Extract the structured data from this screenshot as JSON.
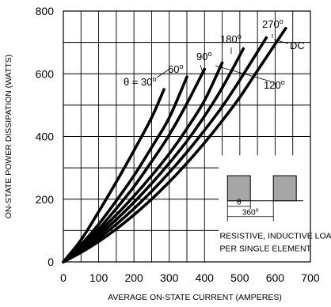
{
  "chart_data": {
    "type": "line",
    "xlabel": "AVERAGE ON-STATE  CURRENT (AMPERES)",
    "ylabel": "ON-STATE POWER DISSIPATION (WATTS)",
    "xlim": [
      0,
      700
    ],
    "ylim": [
      0,
      800
    ],
    "x_ticks": [
      "0",
      "100",
      "200",
      "300",
      "400",
      "500",
      "600",
      "700"
    ],
    "y_ticks": [
      "0",
      "200",
      "400",
      "600",
      "800"
    ],
    "grid": true,
    "series": [
      {
        "name": "θ = 30º",
        "end_label": "θ = 30",
        "end_label_sup": "o",
        "x": [
          0,
          50,
          100,
          150,
          200,
          250,
          285
        ],
        "y": [
          0,
          70,
          160,
          255,
          355,
          460,
          550
        ]
      },
      {
        "name": "60º",
        "end_label": "60",
        "end_label_sup": "o",
        "x": [
          0,
          50,
          100,
          150,
          200,
          250,
          300,
          350
        ],
        "y": [
          0,
          55,
          120,
          195,
          275,
          365,
          460,
          590
        ]
      },
      {
        "name": "90º",
        "end_label": "90",
        "end_label_sup": "o",
        "x": [
          0,
          50,
          100,
          150,
          200,
          250,
          300,
          350,
          400
        ],
        "y": [
          0,
          50,
          105,
          170,
          240,
          320,
          405,
          505,
          615
        ]
      },
      {
        "name": "180º",
        "end_label": "180",
        "end_label_sup": "o",
        "x": [
          0,
          50,
          100,
          150,
          200,
          250,
          300,
          350,
          400,
          450
        ],
        "y": [
          0,
          45,
          95,
          150,
          210,
          275,
          345,
          425,
          515,
          635
        ]
      },
      {
        "name": "120º",
        "end_label": "120",
        "end_label_sup": "o",
        "x": [
          0,
          50,
          100,
          150,
          200,
          250,
          300,
          350,
          400,
          450,
          510
        ],
        "y": [
          0,
          40,
          85,
          135,
          190,
          250,
          315,
          385,
          465,
          555,
          680
        ]
      },
      {
        "name": "270º",
        "end_label": "270",
        "end_label_sup": "o",
        "x": [
          0,
          50,
          100,
          150,
          200,
          250,
          300,
          350,
          400,
          450,
          500,
          575
        ],
        "y": [
          0,
          35,
          75,
          120,
          170,
          225,
          285,
          350,
          420,
          495,
          580,
          715
        ]
      },
      {
        "name": "DC",
        "end_label": "DC",
        "end_label_sup": "",
        "x": [
          0,
          50,
          100,
          150,
          200,
          250,
          300,
          350,
          400,
          450,
          500,
          550,
          630
        ],
        "y": [
          0,
          30,
          65,
          105,
          150,
          200,
          255,
          315,
          380,
          450,
          525,
          610,
          745
        ]
      }
    ],
    "inset": {
      "theta_label": "θ",
      "period_label": "360",
      "period_sup": "o",
      "note_lines": [
        "RESISTIVE, INDUCTIVE LOAD",
        "PER SINGLE ELEMENT"
      ]
    },
    "colors": {
      "line": "#000000",
      "grid": "#000000",
      "pulse_fill": "#a6a6a6"
    }
  }
}
